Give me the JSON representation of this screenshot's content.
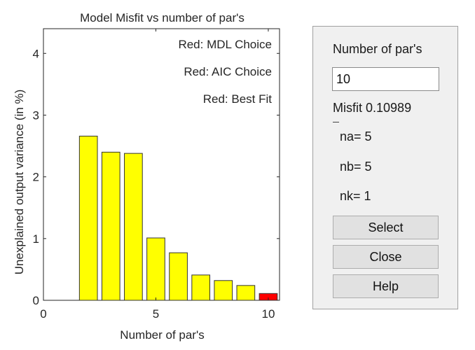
{
  "chart_data": {
    "type": "bar",
    "title": "Model Misfit vs number of par's",
    "xlabel": "Number of par's",
    "ylabel": "Unexplained output variance (in %)",
    "xlim": [
      0,
      10.5
    ],
    "ylim": [
      0,
      4.4
    ],
    "xticks": [
      0,
      5,
      10
    ],
    "yticks": [
      0,
      1,
      2,
      3,
      4
    ],
    "grid": false,
    "legend": [
      "Red: MDL Choice",
      "Red: AIC Choice",
      "Red: Best Fit"
    ],
    "legend_placement": "top-right",
    "x": [
      2,
      3,
      4,
      5,
      6,
      7,
      8,
      9,
      10
    ],
    "values": [
      2.66,
      2.4,
      2.38,
      1.01,
      0.77,
      0.41,
      0.32,
      0.24,
      0.11
    ],
    "colors": [
      "#ffff00",
      "#ffff00",
      "#ffff00",
      "#ffff00",
      "#ffff00",
      "#ffff00",
      "#ffff00",
      "#ffff00",
      "#ff0000"
    ]
  },
  "panel": {
    "title": "Number of par's",
    "input_value": "10",
    "misfit_label": "Misfit",
    "misfit_value": "0.10989",
    "na": "na= 5",
    "nb": "nb= 5",
    "nk": "nk= 1",
    "buttons": {
      "select": "Select",
      "close": "Close",
      "help": "Help"
    }
  }
}
